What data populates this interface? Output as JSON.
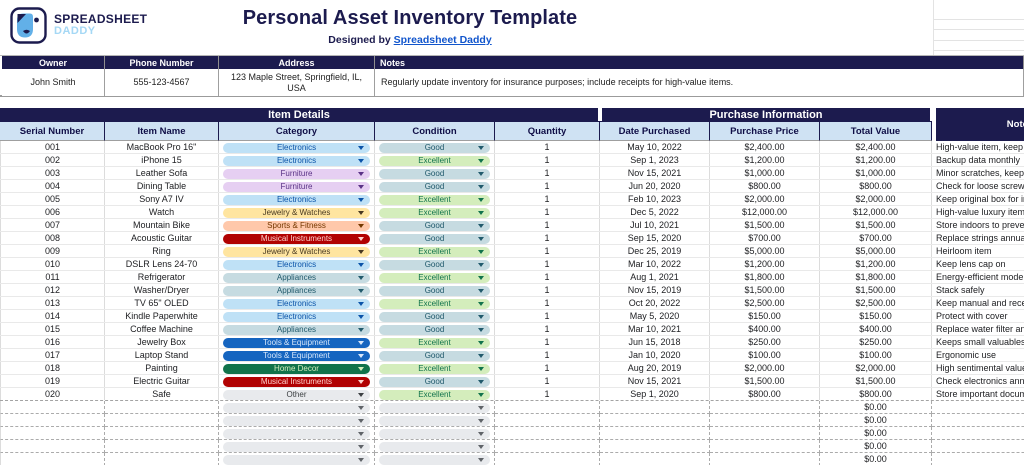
{
  "brand": {
    "logo_line1": "SPREADSHEET",
    "logo_line2": "DADDY",
    "logo_icon": "spreadsheet-daddy-face"
  },
  "header": {
    "title": "Personal Asset Inventory Template",
    "subtitle_prefix": "Designed by",
    "subtitle_link": "Spreadsheet Daddy"
  },
  "colors": {
    "navy": "#1c1b4e",
    "header_blue": "#cfe2f3",
    "link_blue": "#1155cc",
    "logo_light_blue": "#a5d8f5",
    "logo_face_blue": "#62b0e8"
  },
  "owner_table": {
    "headers": [
      "Owner",
      "Phone Number",
      "Address",
      "Notes"
    ],
    "owner": "John Smith",
    "phone": "555-123-4567",
    "address": "123 Maple Street, Springfield, IL, USA",
    "notes": "Regularly update inventory for insurance purposes; include receipts for high-value items."
  },
  "main_table": {
    "section_headers": {
      "item_details": "Item Details",
      "purchase_information": "Purchase Information",
      "notes": "Notes"
    },
    "columns": [
      "Serial Number",
      "Item Name",
      "Category",
      "Condition",
      "Quantity",
      "Date Purchased",
      "Purchase Price",
      "Total Value"
    ],
    "category_styles": {
      "Electronics": {
        "bg": "#bfe1f6",
        "fg": "#0a53a8"
      },
      "Furniture": {
        "bg": "#e6cff2",
        "fg": "#5a3286"
      },
      "Jewelry & Watches": {
        "bg": "#ffe5a0",
        "fg": "#473821"
      },
      "Sports & Fitness": {
        "bg": "#ffc8aa",
        "fg": "#753800"
      },
      "Musical Instruments": {
        "bg": "#b10202",
        "fg": "#ffd3cd"
      },
      "Appliances": {
        "bg": "#c6dbe1",
        "fg": "#215a6c"
      },
      "Tools & Equipment": {
        "bg": "#1565c0",
        "fg": "#d7e7fb"
      },
      "Home Decor": {
        "bg": "#11734b",
        "fg": "#d4edbc"
      },
      "Other": {
        "bg": "#e8eaed",
        "fg": "#3c4043"
      }
    },
    "condition_styles": {
      "Good": {
        "bg": "#c6dbe1",
        "fg": "#215a6c"
      },
      "Excellent": {
        "bg": "#d4edbc",
        "fg": "#11734b"
      }
    },
    "empty_chip": {
      "bg": "#e8eaed",
      "fg": "#5f6368"
    },
    "rows": [
      {
        "serial": "001",
        "name": "MacBook Pro 16\"",
        "category": "Electronics",
        "condition": "Good",
        "qty": "1",
        "date": "May 10, 2022",
        "price": "$2,400.00",
        "total": "$2,400.00",
        "note": "High-value item, keep receipt"
      },
      {
        "serial": "002",
        "name": "iPhone 15",
        "category": "Electronics",
        "condition": "Excellent",
        "qty": "1",
        "date": "Sep 1, 2023",
        "price": "$1,200.00",
        "total": "$1,200.00",
        "note": "Backup data monthly"
      },
      {
        "serial": "003",
        "name": "Leather Sofa",
        "category": "Furniture",
        "condition": "Good",
        "qty": "1",
        "date": "Nov 15, 2021",
        "price": "$1,000.00",
        "total": "$1,000.00",
        "note": "Minor scratches, keep leather clean"
      },
      {
        "serial": "004",
        "name": "Dining Table",
        "category": "Furniture",
        "condition": "Good",
        "qty": "1",
        "date": "Jun 20, 2020",
        "price": "$800.00",
        "total": "$800.00",
        "note": "Check for loose screws yearly"
      },
      {
        "serial": "005",
        "name": "Sony A7 IV",
        "category": "Electronics",
        "condition": "Excellent",
        "qty": "1",
        "date": "Feb 10, 2023",
        "price": "$2,000.00",
        "total": "$2,000.00",
        "note": "Keep original box for insurance"
      },
      {
        "serial": "006",
        "name": "Watch",
        "category": "Jewelry & Watches",
        "condition": "Excellent",
        "qty": "1",
        "date": "Dec 5, 2022",
        "price": "$12,000.00",
        "total": "$12,000.00",
        "note": "High-value luxury item"
      },
      {
        "serial": "007",
        "name": "Mountain Bike",
        "category": "Sports & Fitness",
        "condition": "Good",
        "qty": "1",
        "date": "Jul 10, 2021",
        "price": "$1,500.00",
        "total": "$1,500.00",
        "note": "Store indoors to prevent rust"
      },
      {
        "serial": "008",
        "name": "Acoustic Guitar",
        "category": "Musical Instruments",
        "condition": "Good",
        "qty": "1",
        "date": "Sep 15, 2020",
        "price": "$700.00",
        "total": "$700.00",
        "note": "Replace strings annually"
      },
      {
        "serial": "009",
        "name": "Ring",
        "category": "Jewelry & Watches",
        "condition": "Excellent",
        "qty": "1",
        "date": "Dec 25, 2019",
        "price": "$5,000.00",
        "total": "$5,000.00",
        "note": "Heirloom item"
      },
      {
        "serial": "010",
        "name": "DSLR Lens 24-70",
        "category": "Electronics",
        "condition": "Good",
        "qty": "1",
        "date": "Mar 10, 2022",
        "price": "$1,200.00",
        "total": "$1,200.00",
        "note": "Keep lens cap on"
      },
      {
        "serial": "011",
        "name": "Refrigerator",
        "category": "Appliances",
        "condition": "Excellent",
        "qty": "1",
        "date": "Aug 1, 2021",
        "price": "$1,800.00",
        "total": "$1,800.00",
        "note": "Energy-efficient model"
      },
      {
        "serial": "012",
        "name": "Washer/Dryer",
        "category": "Appliances",
        "condition": "Good",
        "qty": "1",
        "date": "Nov 15, 2019",
        "price": "$1,500.00",
        "total": "$1,500.00",
        "note": "Stack safely"
      },
      {
        "serial": "013",
        "name": "TV 65\" OLED",
        "category": "Electronics",
        "condition": "Excellent",
        "qty": "1",
        "date": "Oct 20, 2022",
        "price": "$2,500.00",
        "total": "$2,500.00",
        "note": "Keep manual and receipts"
      },
      {
        "serial": "014",
        "name": "Kindle Paperwhite",
        "category": "Electronics",
        "condition": "Good",
        "qty": "1",
        "date": "May 5, 2020",
        "price": "$150.00",
        "total": "$150.00",
        "note": "Protect with cover"
      },
      {
        "serial": "015",
        "name": "Coffee Machine",
        "category": "Appliances",
        "condition": "Good",
        "qty": "1",
        "date": "Mar 10, 2021",
        "price": "$400.00",
        "total": "$400.00",
        "note": "Replace water filter annually"
      },
      {
        "serial": "016",
        "name": "Jewelry Box",
        "category": "Tools & Equipment",
        "condition": "Excellent",
        "qty": "1",
        "date": "Jun 15, 2018",
        "price": "$250.00",
        "total": "$250.00",
        "note": "Keeps small valuables organized"
      },
      {
        "serial": "017",
        "name": "Laptop Stand",
        "category": "Tools & Equipment",
        "condition": "Good",
        "qty": "1",
        "date": "Jan 10, 2020",
        "price": "$100.00",
        "total": "$100.00",
        "note": "Ergonomic use"
      },
      {
        "serial": "018",
        "name": "Painting",
        "category": "Home Decor",
        "condition": "Excellent",
        "qty": "1",
        "date": "Aug 20, 2019",
        "price": "$2,000.00",
        "total": "$2,000.00",
        "note": "High sentimental value"
      },
      {
        "serial": "019",
        "name": "Electric Guitar",
        "category": "Musical Instruments",
        "condition": "Good",
        "qty": "1",
        "date": "Nov 15, 2021",
        "price": "$1,500.00",
        "total": "$1,500.00",
        "note": "Check electronics annually"
      },
      {
        "serial": "020",
        "name": "Safe",
        "category": "Other",
        "condition": "Excellent",
        "qty": "1",
        "date": "Sep 1, 2020",
        "price": "$800.00",
        "total": "$800.00",
        "note": "Store important documents inside"
      }
    ],
    "empty_rows": {
      "count": 5,
      "total_value": "$0.00"
    }
  }
}
